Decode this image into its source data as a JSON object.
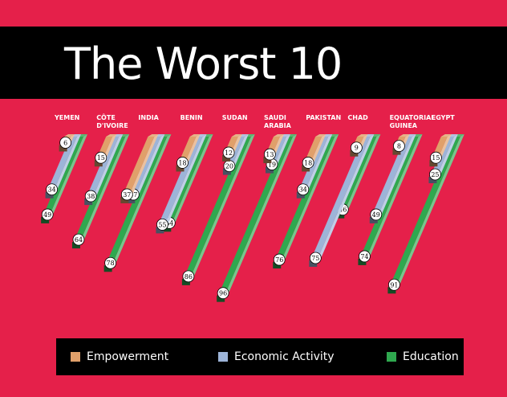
{
  "title": "The Worst 10",
  "colors": {
    "background": "#E5204A",
    "band": "#000000",
    "empowerment": "#E0A06A",
    "economic": "#9DB4D8",
    "education": "#2FA84F"
  },
  "legend": [
    {
      "label": "Empowerment",
      "color": "#E0A06A"
    },
    {
      "label": "Economic Activity",
      "color": "#9DB4D8"
    },
    {
      "label": "Education",
      "color": "#2FA84F"
    }
  ],
  "chart_data": {
    "type": "bar",
    "categories": [
      [
        "YEMEN"
      ],
      [
        "CÔTE",
        "D'IVOIRE"
      ],
      [
        "INDIA"
      ],
      [
        "BENIN"
      ],
      [
        "SUDAN"
      ],
      [
        "SAUDI",
        "ARABIA"
      ],
      [
        "PAKISTAN"
      ],
      [
        "CHAD"
      ],
      [
        "EQUATORIAL",
        "GUINEA"
      ],
      [
        "EGYPT"
      ]
    ],
    "series": [
      {
        "name": "Empowerment",
        "values": [
          6,
          15,
          37,
          18,
          12,
          13,
          18,
          9,
          8,
          15
        ]
      },
      {
        "name": "Economic Activity",
        "values": [
          34,
          38,
          37,
          55,
          20,
          19,
          34,
          75,
          49,
          25
        ]
      },
      {
        "name": "Education",
        "values": [
          49,
          64,
          78,
          54,
          86,
          96,
          76,
          46,
          74,
          91
        ]
      }
    ]
  }
}
